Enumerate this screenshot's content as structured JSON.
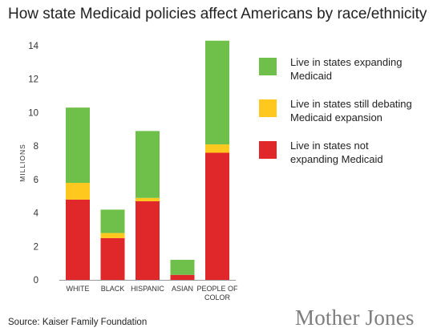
{
  "title": "How state Medicaid policies affect Americans by race/ethnicity",
  "source": "Source: Kaiser Family Foundation",
  "brand": "Mother Jones",
  "chart_data": {
    "type": "bar",
    "stacked": true,
    "ylabel": "MILLIONS",
    "ylim": [
      0,
      14
    ],
    "yticks": [
      0,
      2,
      4,
      6,
      8,
      10,
      12,
      14
    ],
    "categories": [
      "WHITE",
      "BLACK",
      "HISPANIC",
      "ASIAN",
      "PEOPLE OF COLOR"
    ],
    "category_lines": [
      [
        "WHITE"
      ],
      [
        "BLACK"
      ],
      [
        "HISPANIC"
      ],
      [
        "ASIAN"
      ],
      [
        "PEOPLE OF",
        "COLOR"
      ]
    ],
    "series": [
      {
        "name": "Live in states not expanding Medicaid",
        "legend_lines": [
          "Live in states not",
          "expanding Medicaid"
        ],
        "color": "#e0282a",
        "values": [
          4.8,
          2.5,
          4.7,
          0.3,
          7.6
        ]
      },
      {
        "name": "Live in states still debating Medicaid expansion",
        "legend_lines": [
          "Live in states still debating",
          "Medicaid expansion"
        ],
        "color": "#ffc81e",
        "values": [
          1.0,
          0.3,
          0.2,
          0.0,
          0.5
        ]
      },
      {
        "name": "Live in states expanding Medicaid",
        "legend_lines": [
          "Live in states expanding",
          "Medicaid"
        ],
        "color": "#6fc04a",
        "values": [
          4.5,
          1.4,
          4.0,
          0.9,
          6.2
        ]
      }
    ],
    "legend_order": [
      2,
      1,
      0
    ],
    "legend_position": "right",
    "grid": false
  }
}
